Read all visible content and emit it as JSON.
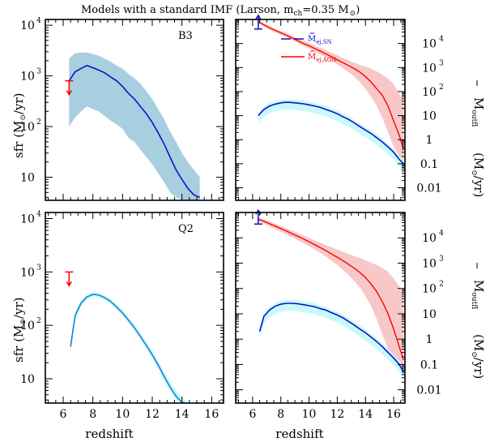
{
  "title": "Models with a standard IMF (Larson, m",
  "title_sub": "ch",
  "title_tail": "=0.35 M",
  "axes": {
    "xlabel": "redshift",
    "ylabel_left": "sfr  (M",
    "ylabel_left_tail": "/yr)",
    "ylabel_right": "M",
    "ylabel_right_sub": "outfl",
    "ylabel_right_units": "(M",
    "ylabel_right_units_tail": "/yr)",
    "x_ticks": [
      "6",
      "8",
      "10",
      "12",
      "14",
      "16"
    ],
    "left_y_ticks": [
      "10",
      "10",
      "10",
      "10"
    ],
    "left_y_exps": [
      "",
      "2",
      "3",
      "4"
    ],
    "right_y_ticks": [
      "0.01",
      "0.1",
      "1",
      "10",
      "10",
      "10",
      "10"
    ],
    "right_y_exps": [
      "",
      "",
      "",
      "",
      "2",
      "3",
      "4"
    ]
  },
  "legend": {
    "sn": "M",
    "sn_sub": "ej,SN",
    "agn": "M",
    "agn_sub": "ej,AGN"
  },
  "colors": {
    "blue": "#1010c8",
    "lightblue": "#1e7fdc",
    "red": "#ff0000",
    "band_sfr": "#a8cfe0",
    "band_cyan": "#c8fafa",
    "band_pink": "#f8c8c8"
  },
  "chart_data": [
    {
      "type": "line",
      "panel": "top-left",
      "label": "B3",
      "xlim": [
        4.8,
        16.8
      ],
      "ylim": [
        3.5,
        13000
      ],
      "yscale": "log",
      "x": [
        6.4,
        6.8,
        7.2,
        7.6,
        8.0,
        8.4,
        8.8,
        9.2,
        9.6,
        10.0,
        10.4,
        10.8,
        11.2,
        11.6,
        12.0,
        12.4,
        12.8,
        13.2,
        13.6,
        14.0,
        14.4,
        14.8,
        15.2
      ],
      "y": [
        800,
        1200,
        1400,
        1600,
        1450,
        1300,
        1150,
        950,
        800,
        620,
        450,
        350,
        250,
        180,
        120,
        75,
        45,
        25,
        14,
        9,
        6,
        4.5,
        4
      ],
      "band_lo": [
        100,
        150,
        200,
        250,
        220,
        200,
        160,
        130,
        110,
        90,
        60,
        50,
        35,
        25,
        18,
        12,
        8,
        5,
        4,
        3.6,
        3.5,
        3.5,
        3.5
      ],
      "band_hi": [
        2200,
        2800,
        2900,
        2900,
        2700,
        2500,
        2200,
        1900,
        1600,
        1400,
        1100,
        900,
        700,
        500,
        350,
        220,
        140,
        80,
        50,
        30,
        20,
        14,
        10
      ],
      "upper_limit": {
        "x": 6.4,
        "y": 800
      }
    },
    {
      "type": "line",
      "panel": "top-right",
      "xlim": [
        4.8,
        16.8
      ],
      "ylim": [
        0.003,
        100000
      ],
      "yscale": "log",
      "series": [
        {
          "name": "M ej,SN",
          "x": [
            6.4,
            6.8,
            7.2,
            7.6,
            8.0,
            8.4,
            8.8,
            9.2,
            9.6,
            10.0,
            10.4,
            10.8,
            11.2,
            11.6,
            12.0,
            12.4,
            12.8,
            13.2,
            13.6,
            14.0,
            14.4,
            14.8,
            15.2,
            15.6,
            16.0,
            16.4,
            16.7
          ],
          "y": [
            10,
            18,
            25,
            30,
            34,
            36,
            35,
            33,
            31,
            28,
            25,
            22,
            18,
            15,
            12,
            9,
            7,
            5,
            3.5,
            2.5,
            1.8,
            1.2,
            0.8,
            0.5,
            0.3,
            0.15,
            0.1
          ]
        },
        {
          "name": "M ej,AGN",
          "x": [
            6.4,
            6.8,
            7.2,
            7.6,
            8.0,
            8.4,
            8.8,
            9.2,
            9.6,
            10.0,
            10.4,
            10.8,
            11.2,
            11.6,
            12.0,
            12.4,
            12.8,
            13.2,
            13.6,
            14.0,
            14.4,
            14.8,
            15.2,
            15.6,
            16.0,
            16.4,
            16.7
          ],
          "y": [
            80000,
            60000,
            45000,
            35000,
            28000,
            22000,
            17000,
            13000,
            10000,
            8000,
            6200,
            4800,
            3700,
            2800,
            2100,
            1600,
            1200,
            900,
            650,
            420,
            250,
            130,
            70,
            25,
            6,
            1.5,
            0.4
          ],
          "band_lo": [
            70000,
            50000,
            38000,
            29000,
            23000,
            18000,
            14000,
            10500,
            8000,
            6200,
            4700,
            3500,
            2600,
            1900,
            1350,
            950,
            650,
            420,
            250,
            130,
            60,
            25,
            8,
            2,
            0.5,
            0.2,
            0.1
          ],
          "band_hi": [
            95000,
            70000,
            53000,
            41000,
            33000,
            27000,
            21000,
            16500,
            13000,
            10500,
            8300,
            6600,
            5200,
            4100,
            3200,
            2500,
            2000,
            1600,
            1300,
            1100,
            900,
            700,
            500,
            350,
            200,
            80,
            40
          ]
        }
      ],
      "upper_limit": {
        "x": 6.4,
        "y": 40000
      }
    },
    {
      "type": "line",
      "panel": "bottom-left",
      "label": "Q2",
      "xlim": [
        4.8,
        16.8
      ],
      "ylim": [
        3.5,
        13000
      ],
      "yscale": "log",
      "x": [
        6.5,
        6.8,
        7.2,
        7.6,
        8.0,
        8.4,
        8.8,
        9.2,
        9.6,
        10.0,
        10.4,
        10.8,
        11.2,
        11.6,
        12.0,
        12.4,
        12.8,
        13.2,
        13.6,
        14.0,
        14.2
      ],
      "y": [
        40,
        150,
        260,
        340,
        380,
        370,
        330,
        280,
        220,
        170,
        125,
        90,
        62,
        42,
        28,
        18,
        11,
        7,
        4.7,
        3.6,
        3.5
      ],
      "band_lo": [
        30,
        120,
        220,
        300,
        340,
        330,
        295,
        248,
        195,
        150,
        110,
        79,
        54,
        36,
        24,
        15,
        9,
        5.8,
        4,
        3.5,
        3.5
      ],
      "band_hi": [
        55,
        180,
        300,
        380,
        420,
        410,
        370,
        315,
        250,
        195,
        145,
        105,
        73,
        50,
        34,
        22,
        14,
        9,
        6,
        4.5,
        4
      ],
      "upper_limit": {
        "x": 6.4,
        "y": 1000
      }
    },
    {
      "type": "line",
      "panel": "bottom-right",
      "xlim": [
        4.8,
        16.8
      ],
      "ylim": [
        0.003,
        100000
      ],
      "yscale": "log",
      "series": [
        {
          "name": "M ej,SN",
          "x": [
            6.5,
            6.8,
            7.2,
            7.6,
            8.0,
            8.4,
            8.8,
            9.2,
            9.6,
            10.0,
            10.4,
            10.8,
            11.2,
            11.6,
            12.0,
            12.4,
            12.8,
            13.2,
            13.6,
            14.0,
            14.4,
            14.8,
            15.2,
            15.6,
            16.0,
            16.4,
            16.7
          ],
          "y": [
            2,
            8,
            14,
            20,
            24,
            26,
            26,
            25,
            23,
            21,
            19,
            16,
            14,
            11,
            9,
            7,
            5,
            3.6,
            2.5,
            1.8,
            1.2,
            0.8,
            0.5,
            0.3,
            0.18,
            0.1,
            0.05
          ]
        },
        {
          "name": "M ej,AGN",
          "x": [
            6.4,
            6.8,
            7.2,
            7.6,
            8.0,
            8.4,
            8.8,
            9.2,
            9.6,
            10.0,
            10.4,
            10.8,
            11.2,
            11.6,
            12.0,
            12.4,
            12.8,
            13.2,
            13.6,
            14.0,
            14.4,
            14.8,
            15.2,
            15.6,
            16.0,
            16.4,
            16.7
          ],
          "y": [
            55000,
            45000,
            36000,
            29000,
            23000,
            18500,
            14500,
            11500,
            9000,
            7000,
            5400,
            4100,
            3100,
            2300,
            1700,
            1250,
            900,
            640,
            430,
            270,
            150,
            75,
            30,
            10,
            2.5,
            0.5,
            0.15
          ],
          "band_lo": [
            45000,
            36000,
            28000,
            22000,
            17000,
            13500,
            10500,
            8000,
            6200,
            4700,
            3500,
            2500,
            1800,
            1250,
            850,
            550,
            340,
            200,
            110,
            50,
            20,
            6,
            1.5,
            0.4,
            0.1,
            0.05,
            0.03
          ],
          "band_hi": [
            65000,
            54000,
            44000,
            36000,
            29000,
            23500,
            19000,
            15500,
            12500,
            10000,
            8000,
            6500,
            5200,
            4200,
            3400,
            2800,
            2300,
            1900,
            1600,
            1300,
            1050,
            850,
            650,
            450,
            250,
            120,
            50
          ]
        }
      ],
      "upper_limit": {
        "x": 6.4,
        "y": 35000
      }
    }
  ]
}
